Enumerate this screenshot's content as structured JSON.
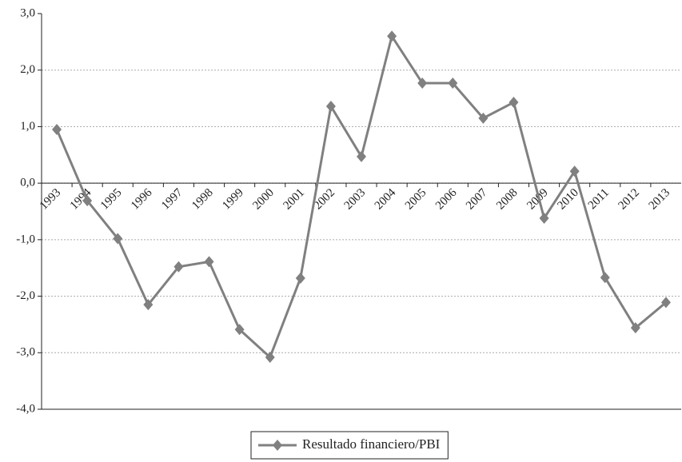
{
  "chart_data": {
    "type": "line",
    "categories": [
      "1993",
      "1994",
      "1995",
      "1996",
      "1997",
      "1998",
      "1999",
      "2000",
      "2001",
      "2002",
      "2003",
      "2004",
      "2005",
      "2006",
      "2007",
      "2008",
      "2009",
      "2010",
      "2011",
      "2012",
      "2013"
    ],
    "series": [
      {
        "name": "Resultado financiero/PBI",
        "color": "#808080",
        "values": [
          0.95,
          -0.31,
          -0.98,
          -2.15,
          -1.48,
          -1.39,
          -2.59,
          -3.08,
          -1.68,
          1.36,
          0.47,
          2.6,
          1.77,
          1.77,
          1.15,
          1.43,
          -0.62,
          0.21,
          -1.67,
          -2.56,
          -2.11
        ]
      }
    ],
    "ylim": [
      -4,
      3
    ],
    "yticks": [
      {
        "value": -4,
        "label": "-4,0"
      },
      {
        "value": -3,
        "label": "-3,0"
      },
      {
        "value": -2,
        "label": "-2,0"
      },
      {
        "value": -1,
        "label": "-1,0"
      },
      {
        "value": 0,
        "label": "0,0"
      },
      {
        "value": 1,
        "label": "1,0"
      },
      {
        "value": 2,
        "label": "2,0"
      },
      {
        "value": 3,
        "label": "3,0"
      }
    ],
    "grid": true,
    "legend": "bottom"
  }
}
